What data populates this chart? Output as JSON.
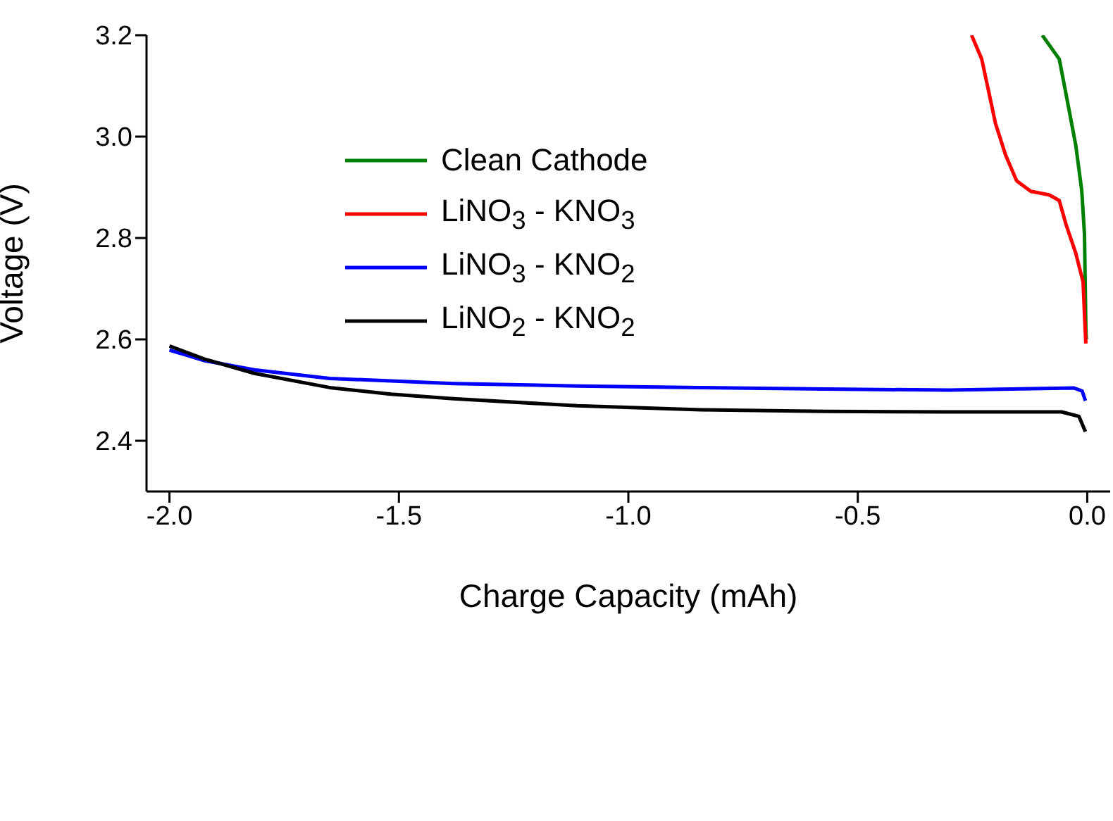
{
  "chart_data": {
    "type": "line",
    "xlabel": "Charge Capacity (mAh)",
    "ylabel": "Voltage (V)",
    "xlim": [
      -2.05,
      0.05
    ],
    "ylim": [
      2.3,
      3.2
    ],
    "xticks": [
      {
        "value": -2,
        "label": "-2.0"
      },
      {
        "value": -1.5,
        "label": "-1.5"
      },
      {
        "value": -1,
        "label": "-1.0"
      },
      {
        "value": -0.5,
        "label": "-0.5"
      },
      {
        "value": 0,
        "label": "0.0"
      }
    ],
    "yticks": [
      {
        "value": 2.4,
        "label": "2.4"
      },
      {
        "value": 2.6,
        "label": "2.6"
      },
      {
        "value": 2.8,
        "label": "2.8"
      },
      {
        "value": 3.0,
        "label": "3.0"
      },
      {
        "value": 3.2,
        "label": "3.2"
      }
    ],
    "grid": false,
    "legend": "top left",
    "marker": "none",
    "line_style": "solid",
    "series": [
      {
        "name": "Clean Cathode",
        "color": "#008000",
        "x": [
          -0.098,
          -0.061,
          -0.046,
          -0.025,
          -0.012,
          -0.006,
          -0.003,
          -0.002
        ],
        "values": [
          3.2,
          3.153,
          3.083,
          2.983,
          2.894,
          2.807,
          2.619,
          2.6
        ]
      },
      {
        "name": "LiNO$_{3}$ - KNO$_{3}$",
        "color": "#ff0000",
        "x": [
          -0.252,
          -0.23,
          -0.215,
          -0.2,
          -0.178,
          -0.154,
          -0.123,
          -0.083,
          -0.061,
          -0.046,
          -0.025,
          -0.009,
          -0.006,
          -0.003
        ],
        "values": [
          3.2,
          3.153,
          3.09,
          3.026,
          2.964,
          2.913,
          2.892,
          2.885,
          2.874,
          2.826,
          2.77,
          2.713,
          2.649,
          2.592
        ]
      },
      {
        "name": "LiNO$_{3}$ - KNO$_{2}$",
        "color": "#0000ff",
        "x": [
          -2.0,
          -1.923,
          -1.815,
          -1.651,
          -1.381,
          -1.111,
          -0.842,
          -0.571,
          -0.301,
          -0.029,
          -0.011,
          -0.004
        ],
        "values": [
          2.579,
          2.558,
          2.54,
          2.523,
          2.513,
          2.508,
          2.505,
          2.502,
          2.5,
          2.504,
          2.498,
          2.479
        ]
      },
      {
        "name": "LiNO$_{2}$ - KNO$_{2}$",
        "color": "#000000",
        "x": [
          -2.0,
          -1.923,
          -1.815,
          -1.651,
          -1.518,
          -1.381,
          -1.111,
          -0.842,
          -0.571,
          -0.301,
          -0.056,
          -0.018,
          -0.004
        ],
        "values": [
          2.587,
          2.561,
          2.533,
          2.505,
          2.492,
          2.483,
          2.469,
          2.461,
          2.458,
          2.457,
          2.457,
          2.448,
          2.418
        ]
      }
    ]
  }
}
